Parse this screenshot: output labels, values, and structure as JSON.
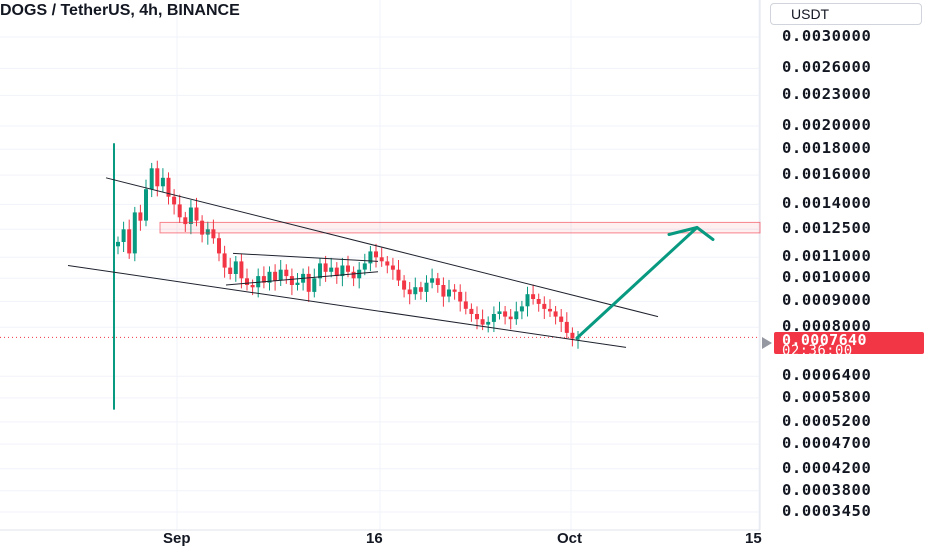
{
  "header": {
    "title": "DOGS / TetherUS, 4h, BINANCE",
    "currency_button": "USDT"
  },
  "price_axis": {
    "labels": [
      "0.0030000",
      "0.0026000",
      "0.0023000",
      "0.0020000",
      "0.0018000",
      "0.0016000",
      "0.0014000",
      "0.0012500",
      "0.0011000",
      "0.0010000",
      "0.0009000",
      "0.0008000",
      "0.0006400",
      "0.0005800",
      "0.0005200",
      "0.0004700",
      "0.0004200",
      "0.0003800",
      "0.0003450"
    ]
  },
  "current_price": {
    "price": "0.0007640",
    "countdown": "02:36:00",
    "color": "#f23645"
  },
  "time_axis": {
    "labels": [
      "Sep",
      "16",
      "Oct",
      "15"
    ]
  },
  "chart_data": {
    "type": "candlestick",
    "symbol": "DOGS / TetherUS",
    "interval": "4h",
    "exchange": "BINANCE",
    "y_scale": "log",
    "ylim": [
      0.000345,
      0.0031
    ],
    "x_ticks": [
      "Sep",
      "16",
      "Oct",
      "15"
    ],
    "colors": {
      "up": "#089981",
      "down": "#f23645"
    },
    "launch_wick": {
      "high": 0.00185,
      "low": 0.00055
    },
    "close_series": [
      0.00118,
      0.00125,
      0.00112,
      0.00135,
      0.0013,
      0.0015,
      0.00165,
      0.00152,
      0.00158,
      0.00145,
      0.0014,
      0.00132,
      0.00128,
      0.00138,
      0.0013,
      0.00122,
      0.00125,
      0.0012,
      0.00112,
      0.00105,
      0.00102,
      0.00108,
      0.001,
      0.00097,
      0.00096,
      0.00101,
      0.00098,
      0.00103,
      0.00099,
      0.00104,
      0.00101,
      0.00097,
      0.00098,
      0.00102,
      0.00094,
      0.001,
      0.00107,
      0.00103,
      0.00105,
      0.00101,
      0.00106,
      0.00103,
      0.001,
      0.00104,
      0.00107,
      0.00113,
      0.0011,
      0.00108,
      0.00106,
      0.00104,
      0.00099,
      0.00095,
      0.00093,
      0.00096,
      0.00094,
      0.00098,
      0.001,
      0.00097,
      0.00092,
      0.00095,
      0.00094,
      0.0009,
      0.00087,
      0.00085,
      0.00083,
      0.00081,
      0.00082,
      0.00085,
      0.00086,
      0.00084,
      0.00083,
      0.00086,
      0.00088,
      0.00093,
      0.00091,
      0.00089,
      0.00087,
      0.00086,
      0.00084,
      0.00082,
      0.00078,
      0.00076,
      0.00076
    ],
    "resistance_zone": {
      "low": 0.00123,
      "high": 0.00129,
      "color": "#f23645"
    },
    "wedge_upper_line": {
      "from": 0.00158,
      "to": 0.00084
    },
    "wedge_lower_line": {
      "from": 0.00106,
      "to": 0.00073
    },
    "inner_channel_upper": {
      "from": 0.00112,
      "to": 0.00108
    },
    "inner_channel_lower": {
      "from": 0.00097,
      "to": 0.00103
    },
    "projection": {
      "from": 0.000762,
      "to": 0.00126,
      "color": "#089981"
    },
    "current_price": 0.000764
  }
}
